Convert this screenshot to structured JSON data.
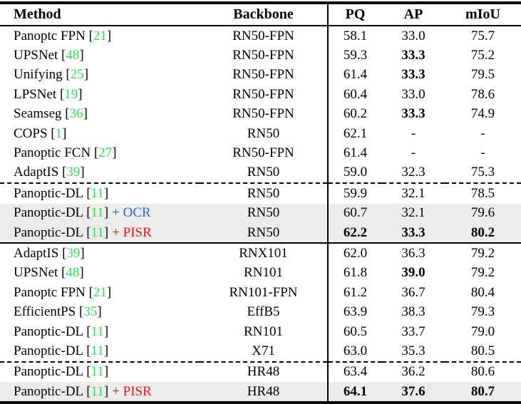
{
  "table": {
    "columns": [
      {
        "key": "method",
        "label": "Method"
      },
      {
        "key": "backbone",
        "label": "Backbone"
      },
      {
        "key": "pq",
        "label": "PQ"
      },
      {
        "key": "ap",
        "label": "AP"
      },
      {
        "key": "miou",
        "label": "mIoU"
      }
    ],
    "rows": [
      {
        "method": "Panoptc FPN",
        "cite": "21",
        "suffix": null,
        "backbone": "RN50-FPN",
        "pq": "58.1",
        "ap": "33.0",
        "miou": "75.7",
        "bold": {},
        "highlight": false,
        "separator_after": null
      },
      {
        "method": "UPSNet",
        "cite": "48",
        "suffix": null,
        "backbone": "RN50-FPN",
        "pq": "59.3",
        "ap": "33.3",
        "miou": "75.2",
        "bold": {
          "ap": true
        },
        "highlight": false,
        "separator_after": null
      },
      {
        "method": "Unifying",
        "cite": "25",
        "suffix": null,
        "backbone": "RN50-FPN",
        "pq": "61.4",
        "ap": "33.3",
        "miou": "79.5",
        "bold": {
          "ap": true
        },
        "highlight": false,
        "separator_after": null
      },
      {
        "method": "LPSNet",
        "cite": "19",
        "suffix": null,
        "backbone": "RN50-FPN",
        "pq": "60.4",
        "ap": "33.0",
        "miou": "78.6",
        "bold": {},
        "highlight": false,
        "separator_after": null
      },
      {
        "method": "Seamseg",
        "cite": "36",
        "suffix": null,
        "backbone": "RN50-FPN",
        "pq": "60.2",
        "ap": "33.3",
        "miou": "74.9",
        "bold": {
          "ap": true
        },
        "highlight": false,
        "separator_after": null
      },
      {
        "method": "COPS",
        "cite": "1",
        "suffix": null,
        "backbone": "RN50",
        "pq": "62.1",
        "ap": "-",
        "miou": "-",
        "bold": {},
        "highlight": false,
        "separator_after": null
      },
      {
        "method": "Panoptic FCN",
        "cite": "27",
        "suffix": null,
        "backbone": "RN50-FPN",
        "pq": "61.4",
        "ap": "-",
        "miou": "-",
        "bold": {},
        "highlight": false,
        "separator_after": null
      },
      {
        "method": "AdaptIS",
        "cite": "39",
        "suffix": null,
        "backbone": "RN50",
        "pq": "59.0",
        "ap": "32.3",
        "miou": "75.3",
        "bold": {},
        "highlight": false,
        "separator_after": "dashed"
      },
      {
        "method": "Panoptic-DL",
        "cite": "11",
        "suffix": null,
        "backbone": "RN50",
        "pq": "59.9",
        "ap": "32.1",
        "miou": "78.5",
        "bold": {},
        "highlight": false,
        "separator_after": null
      },
      {
        "method": "Panoptic-DL",
        "cite": "11",
        "suffix": {
          "label": "+ OCR",
          "color": "blue"
        },
        "backbone": "RN50",
        "pq": "60.7",
        "ap": "32.1",
        "miou": "79.6",
        "bold": {},
        "highlight": true,
        "separator_after": null
      },
      {
        "method": "Panoptic-DL",
        "cite": "11",
        "suffix": {
          "label": "+ PISR",
          "color": "red"
        },
        "backbone": "RN50",
        "pq": "62.2",
        "ap": "33.3",
        "miou": "80.2",
        "bold": {
          "pq": true,
          "ap": true,
          "miou": true
        },
        "highlight": true,
        "separator_after": "solid"
      },
      {
        "method": "AdaptIS",
        "cite": "39",
        "suffix": null,
        "backbone": "RNX101",
        "pq": "62.0",
        "ap": "36.3",
        "miou": "79.2",
        "bold": {},
        "highlight": false,
        "separator_after": null
      },
      {
        "method": "UPSNet",
        "cite": "48",
        "suffix": null,
        "backbone": "RN101",
        "pq": "61.8",
        "ap": "39.0",
        "miou": "79.2",
        "bold": {
          "ap": true
        },
        "highlight": false,
        "separator_after": null
      },
      {
        "method": "Panoptc FPN",
        "cite": "21",
        "suffix": null,
        "backbone": "RN101-FPN",
        "pq": "61.2",
        "ap": "36.7",
        "miou": "80.4",
        "bold": {},
        "highlight": false,
        "separator_after": null
      },
      {
        "method": "EfficientPS",
        "cite": "35",
        "suffix": null,
        "backbone": "EffB5",
        "pq": "63.9",
        "ap": "38.3",
        "miou": "79.3",
        "bold": {},
        "highlight": false,
        "separator_after": null
      },
      {
        "method": "Panoptic-DL",
        "cite": "11",
        "suffix": null,
        "backbone": "RN101",
        "pq": "60.5",
        "ap": "33.7",
        "miou": "79.0",
        "bold": {},
        "highlight": false,
        "separator_after": null
      },
      {
        "method": "Panoptic-DL",
        "cite": "11",
        "suffix": null,
        "backbone": "X71",
        "pq": "63.0",
        "ap": "35.3",
        "miou": "80.5",
        "bold": {},
        "highlight": false,
        "separator_after": "dashed"
      },
      {
        "method": "Panoptic-DL",
        "cite": "11",
        "suffix": null,
        "backbone": "HR48",
        "pq": "63.4",
        "ap": "36.2",
        "miou": "80.6",
        "bold": {},
        "highlight": false,
        "separator_after": null
      },
      {
        "method": "Panoptic-DL",
        "cite": "11",
        "suffix": {
          "label": "+ PISR",
          "color": "red"
        },
        "backbone": "HR48",
        "pq": "64.1",
        "ap": "37.6",
        "miou": "80.7",
        "bold": {
          "pq": true,
          "ap": true,
          "miou": true
        },
        "highlight": true,
        "separator_after": null
      }
    ],
    "bracket_open": "[",
    "bracket_close": "]"
  },
  "colors": {
    "citation_green": "#26e24c",
    "ocr_blue": "#2767c9",
    "pisr_red": "#ee1111",
    "highlight_bg": "#ececec",
    "rule_black": "#000000"
  }
}
